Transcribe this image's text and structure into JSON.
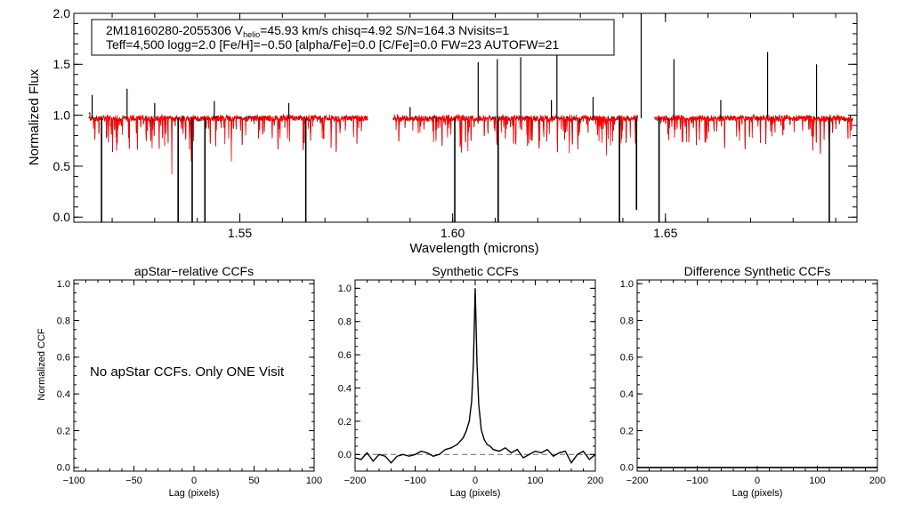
{
  "header": {
    "line1_prefix": "2M18160280-2055306  V",
    "line1_sub": "helio",
    "line1_suffix": "=45.93 km/s  chisq=4.92  S/N=164.3  Nvisits=1",
    "line2": "Teff=4,500 logg=2.0 [Fe/H]=−0.50 [alpha/Fe]=0.0 [C/Fe]=0.0 FW=23 AUTOFW=21"
  },
  "chart_data": [
    {
      "id": "spectrum",
      "type": "line",
      "title": "",
      "xlabel": "Wavelength (microns)",
      "ylabel": "Normalized Flux",
      "xlim": [
        1.511,
        1.695
      ],
      "ylim": [
        -0.05,
        2.0
      ],
      "xticks": [
        1.55,
        1.6,
        1.65
      ],
      "xtick_labels": [
        "1.55",
        "1.60",
        "1.65"
      ],
      "yticks": [
        0.0,
        0.5,
        1.0,
        1.5,
        2.0
      ],
      "ytick_labels": [
        "0.0",
        "0.5",
        "1.0",
        "1.5",
        "2.0"
      ],
      "chips": [
        [
          1.5145,
          1.58
        ],
        [
          1.586,
          1.6435
        ],
        [
          1.6475,
          1.694
        ]
      ],
      "series": [
        {
          "color": "#000000",
          "role": "observed"
        },
        {
          "color": "#ff0000",
          "role": "model"
        }
      ],
      "continuum_level": 0.97,
      "down_spikes": [
        {
          "x": 1.5175,
          "y": -0.05
        },
        {
          "x": 1.5355,
          "y": -0.05
        },
        {
          "x": 1.5388,
          "y": -0.05
        },
        {
          "x": 1.5418,
          "y": -0.05
        },
        {
          "x": 1.5655,
          "y": -0.05
        },
        {
          "x": 1.6005,
          "y": -0.05
        },
        {
          "x": 1.6107,
          "y": -0.05
        },
        {
          "x": 1.6392,
          "y": -0.05
        },
        {
          "x": 1.6432,
          "y": 0.07
        },
        {
          "x": 1.6485,
          "y": -0.05
        },
        {
          "x": 1.6885,
          "y": -0.05
        }
      ],
      "up_spikes": [
        {
          "x": 1.5153,
          "y": 1.2
        },
        {
          "x": 1.5235,
          "y": 1.26
        },
        {
          "x": 1.53,
          "y": 1.12
        },
        {
          "x": 1.544,
          "y": 1.14
        },
        {
          "x": 1.5615,
          "y": 1.12
        },
        {
          "x": 1.59,
          "y": 1.08
        },
        {
          "x": 1.606,
          "y": 1.52
        },
        {
          "x": 1.6105,
          "y": 1.55
        },
        {
          "x": 1.616,
          "y": 1.57
        },
        {
          "x": 1.6232,
          "y": 1.15
        },
        {
          "x": 1.6245,
          "y": 1.62
        },
        {
          "x": 1.633,
          "y": 1.18
        },
        {
          "x": 1.6443,
          "y": 2.0
        },
        {
          "x": 1.652,
          "y": 1.55
        },
        {
          "x": 1.663,
          "y": 1.15
        },
        {
          "x": 1.674,
          "y": 1.62
        },
        {
          "x": 1.6855,
          "y": 1.5
        }
      ]
    },
    {
      "id": "apstar-ccf",
      "type": "line",
      "title": "apStar−relative CCFs",
      "xlabel": "Lag (pixels)",
      "ylabel": "Normalized CCF",
      "xlim": [
        -100,
        100
      ],
      "ylim": [
        -0.02,
        1.02
      ],
      "xticks": [
        -100,
        -50,
        0,
        50,
        100
      ],
      "xtick_labels": [
        "−100",
        "−50",
        "0",
        "50",
        "100"
      ],
      "yticks": [
        0.0,
        0.2,
        0.4,
        0.6,
        0.8,
        1.0
      ],
      "ytick_labels": [
        "0.0",
        "0.2",
        "0.4",
        "0.6",
        "0.8",
        "1.0"
      ],
      "annotation": "No apStar CCFs.  Only ONE Visit",
      "series": []
    },
    {
      "id": "synthetic-ccf",
      "type": "line",
      "title": "Synthetic CCFs",
      "xlabel": "Lag (pixels)",
      "ylabel": "",
      "xlim": [
        -200,
        200
      ],
      "ylim": [
        -0.1,
        1.05
      ],
      "xticks": [
        -200,
        -100,
        0,
        100,
        200
      ],
      "xtick_labels": [
        "−200",
        "−100",
        "0",
        "100",
        "200"
      ],
      "yticks": [
        0.0,
        0.2,
        0.4,
        0.6,
        0.8,
        1.0
      ],
      "ytick_labels": [
        "0.0",
        "0.2",
        "0.4",
        "0.6",
        "0.8",
        "1.0"
      ],
      "zero_line_style": "dashed",
      "peak_x": 0,
      "peak_y": 1.0,
      "series": [
        {
          "color": "#000000",
          "x": [
            -200,
            -190,
            -180,
            -170,
            -160,
            -150,
            -140,
            -130,
            -120,
            -110,
            -100,
            -90,
            -80,
            -70,
            -60,
            -50,
            -40,
            -30,
            -25,
            -20,
            -15,
            -10,
            -6,
            -3,
            0,
            3,
            6,
            10,
            15,
            20,
            25,
            30,
            40,
            50,
            60,
            70,
            80,
            90,
            100,
            110,
            120,
            130,
            140,
            150,
            160,
            170,
            180,
            190,
            200
          ],
          "y": [
            -0.02,
            -0.03,
            0.01,
            -0.04,
            0.0,
            -0.01,
            -0.05,
            -0.01,
            0.0,
            -0.01,
            0.0,
            0.02,
            0.01,
            -0.01,
            0.0,
            0.03,
            0.04,
            0.06,
            0.08,
            0.1,
            0.14,
            0.2,
            0.32,
            0.55,
            1.0,
            0.55,
            0.3,
            0.15,
            0.09,
            0.06,
            0.05,
            0.03,
            0.02,
            0.04,
            0.01,
            0.03,
            -0.02,
            0.0,
            0.02,
            0.01,
            0.03,
            -0.01,
            0.01,
            0.02,
            -0.05,
            0.0,
            0.02,
            -0.03,
            0.0
          ]
        }
      ]
    },
    {
      "id": "difference-ccf",
      "type": "line",
      "title": "Difference Synthetic CCFs",
      "xlabel": "Lag (pixels)",
      "ylabel": "",
      "xlim": [
        -200,
        200
      ],
      "ylim": [
        -0.02,
        1.02
      ],
      "xticks": [
        -200,
        -100,
        0,
        100,
        200
      ],
      "xtick_labels": [
        "−200",
        "−100",
        "0",
        "100",
        "200"
      ],
      "yticks": [
        0.0,
        0.2,
        0.4,
        0.6,
        0.8,
        1.0
      ],
      "ytick_labels": [
        "0.0",
        "0.2",
        "0.4",
        "0.6",
        "0.8",
        "1.0"
      ],
      "series": [
        {
          "color": "#000000",
          "x": [
            -200,
            200
          ],
          "y": [
            0.0,
            0.0
          ]
        }
      ]
    }
  ]
}
